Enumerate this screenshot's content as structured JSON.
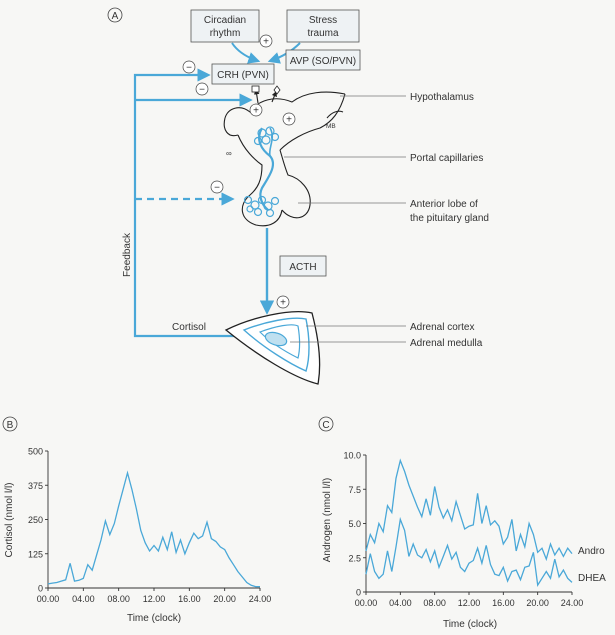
{
  "panels": {
    "a": "A",
    "b": "B",
    "c": "C"
  },
  "diagram": {
    "inputs": {
      "circadian_line1": "Circadian",
      "circadian_line2": "rhythm",
      "stress_line1": "Stress",
      "stress_line2": "trauma"
    },
    "boxes": {
      "crh": "CRH (PVN)",
      "avp": "AVP (SO/PVN)",
      "acth": "ACTH"
    },
    "signs": {
      "plus": "+",
      "minus": "−"
    },
    "mb": "MB",
    "feedback": "Feedback",
    "cortisol": "Cortisol",
    "labels": {
      "hypothalamus": "Hypothalamus",
      "portal": "Portal capillaries",
      "anterior_line1": "Anterior lobe of",
      "anterior_line2": "the pituitary gland",
      "cortex": "Adrenal cortex",
      "medulla": "Adrenal medulla"
    }
  },
  "chart_data": [
    {
      "type": "line",
      "panel": "B",
      "title": "",
      "xlabel": "Time (clock)",
      "ylabel": "Cortisol (nmol l/l)",
      "xlim": [
        0,
        24
      ],
      "ylim": [
        0,
        500
      ],
      "xticks": [
        "00.00",
        "04.00",
        "08.00",
        "12.00",
        "16.00",
        "20.00",
        "24.00"
      ],
      "yticks": [
        "0",
        "125",
        "250",
        "375",
        "500"
      ],
      "series": [
        {
          "x": [
            0,
            0.5,
            1,
            1.5,
            2,
            2.5,
            3,
            3.5,
            4,
            4.5,
            5,
            5.5,
            6,
            6.5,
            7,
            7.5,
            8,
            8.5,
            9,
            9.5,
            10,
            10.5,
            11,
            11.5,
            12,
            12.5,
            13,
            13.5,
            14,
            14.5,
            15,
            15.5,
            16,
            16.5,
            17,
            17.5,
            18,
            18.5,
            19,
            19.5,
            20,
            20.5,
            21,
            21.5,
            22,
            22.5,
            23,
            23.5,
            24
          ],
          "values": [
            15,
            18,
            20,
            25,
            30,
            90,
            25,
            28,
            35,
            85,
            65,
            120,
            175,
            245,
            195,
            235,
            300,
            360,
            420,
            360,
            290,
            210,
            165,
            135,
            155,
            135,
            185,
            140,
            205,
            130,
            175,
            125,
            165,
            200,
            180,
            190,
            240,
            180,
            170,
            150,
            140,
            110,
            85,
            60,
            40,
            20,
            10,
            5,
            5
          ]
        }
      ]
    },
    {
      "type": "line",
      "panel": "C",
      "title": "",
      "xlabel": "Time (clock)",
      "ylabel": "Androgen (nmol l/l)",
      "xlim": [
        0,
        24
      ],
      "ylim": [
        0,
        10
      ],
      "xticks": [
        "00.00",
        "04.00",
        "08.00",
        "12.00",
        "16.00",
        "20.00",
        "24.00"
      ],
      "yticks": [
        "0",
        "2.5",
        "5.0",
        "7.5",
        "10.0"
      ],
      "series": [
        {
          "name": "Andro",
          "x": [
            0,
            0.5,
            1,
            1.5,
            2,
            2.5,
            3,
            3.5,
            4,
            4.5,
            5,
            5.5,
            6,
            6.5,
            7,
            7.5,
            8,
            8.5,
            9,
            9.5,
            10,
            10.5,
            11,
            11.5,
            12,
            12.5,
            13,
            13.5,
            14,
            14.5,
            15,
            15.5,
            16,
            16.5,
            17,
            17.5,
            18,
            18.5,
            19,
            19.5,
            20,
            20.5,
            21,
            21.5,
            22,
            22.5,
            23,
            23.5,
            24
          ],
          "values": [
            3.0,
            4.2,
            3.6,
            5.0,
            4.4,
            6.3,
            5.8,
            8.3,
            9.6,
            8.8,
            7.8,
            7.0,
            6.2,
            5.5,
            6.8,
            5.6,
            7.7,
            6.2,
            5.4,
            6.0,
            5.2,
            6.6,
            5.6,
            4.6,
            4.8,
            4.9,
            7.2,
            5.0,
            6.3,
            4.9,
            5.2,
            4.8,
            3.5,
            4.0,
            5.3,
            3.0,
            4.2,
            3.3,
            5.0,
            4.2,
            2.9,
            3.2,
            2.4,
            3.5,
            2.7,
            3.2,
            2.6,
            3.2,
            2.8
          ]
        },
        {
          "name": "DHEA",
          "x": [
            0,
            0.5,
            1,
            1.5,
            2,
            2.5,
            3,
            3.5,
            4,
            4.5,
            5,
            5.5,
            6,
            6.5,
            7,
            7.5,
            8,
            8.5,
            9,
            9.5,
            10,
            10.5,
            11,
            11.5,
            12,
            12.5,
            13,
            13.5,
            14,
            14.5,
            15,
            15.5,
            16,
            16.5,
            17,
            17.5,
            18,
            18.5,
            19,
            19.5,
            20,
            20.5,
            21,
            21.5,
            22,
            22.5,
            23,
            23.5,
            24
          ],
          "values": [
            1.3,
            2.8,
            1.5,
            1.0,
            1.3,
            3.0,
            1.5,
            3.3,
            5.3,
            4.5,
            2.6,
            3.5,
            2.7,
            2.5,
            3.1,
            2.2,
            3.0,
            1.8,
            2.6,
            3.4,
            2.4,
            2.9,
            1.8,
            1.5,
            2.1,
            2.3,
            3.2,
            2.1,
            3.4,
            2.0,
            1.3,
            1.2,
            1.8,
            0.8,
            1.5,
            1.6,
            0.9,
            1.8,
            1.9,
            2.9,
            0.5,
            1.0,
            1.5,
            1.0,
            2.4,
            1.1,
            1.6,
            1.0,
            0.7
          ]
        }
      ]
    }
  ]
}
